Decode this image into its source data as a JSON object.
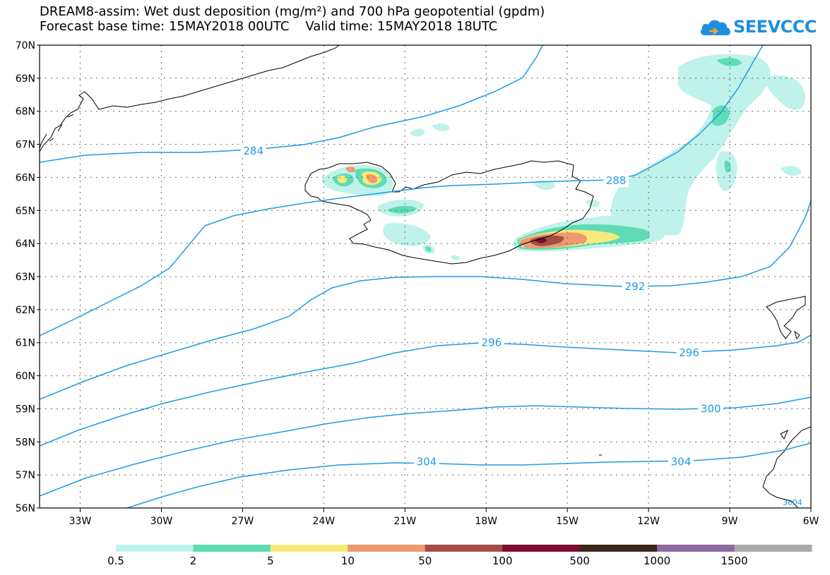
{
  "header": {
    "title_line1": "DREAM8-assim: Wet dust deposition (mg/m²) and 700 hPa geopotential (gpdm)",
    "title_line2": "Forecast base time: 15MAY2018 00UTC    Valid time: 15MAY2018 18UTC",
    "logo_text": "SEEVCCC",
    "logo_color": "#1e8fe0"
  },
  "map": {
    "lon_range": [
      -34.5,
      -6
    ],
    "lat_range": [
      56,
      70
    ],
    "lon_ticks": [
      -33,
      -30,
      -27,
      -24,
      -21,
      -18,
      -15,
      -12,
      -9,
      -6
    ],
    "lon_labels": [
      "33W",
      "30W",
      "27W",
      "24W",
      "21W",
      "18W",
      "15W",
      "12W",
      "9W",
      "6W"
    ],
    "lat_ticks": [
      70,
      69,
      68,
      67,
      66,
      65,
      64,
      63,
      62,
      61,
      60,
      59,
      58,
      57,
      56
    ],
    "lat_labels": [
      "70N",
      "69N",
      "68N",
      "67N",
      "66N",
      "65N",
      "64N",
      "63N",
      "62N",
      "61N",
      "60N",
      "59N",
      "58N",
      "57N",
      "56N"
    ],
    "grid": true,
    "contour_color": "#1e9be6",
    "contour_labels": [
      {
        "text": "284",
        "lon": -26.6,
        "lat": 66.8
      },
      {
        "text": "288",
        "lon": -13.2,
        "lat": 65.9
      },
      {
        "text": "292",
        "lon": -12.5,
        "lat": 62.7
      },
      {
        "text": "296",
        "lon": -17.8,
        "lat": 61.0
      },
      {
        "text": "296",
        "lon": -10.5,
        "lat": 60.7
      },
      {
        "text": "300",
        "lon": -9.7,
        "lat": 59.0
      },
      {
        "text": "304",
        "lon": -20.2,
        "lat": 57.4
      },
      {
        "text": "304",
        "lon": -10.8,
        "lat": 57.4
      }
    ],
    "corner_label": "3e04"
  },
  "colorbar": {
    "colors": [
      "#bff2ea",
      "#5edcb4",
      "#f5ea7a",
      "#ee9a6e",
      "#a24d45",
      "#7a0c2e",
      "#3b2618",
      "#8e6a9e",
      "#a9a9a9"
    ],
    "labels": [
      "0.5",
      "2",
      "5",
      "10",
      "50",
      "100",
      "500",
      "1000",
      "1500"
    ]
  }
}
